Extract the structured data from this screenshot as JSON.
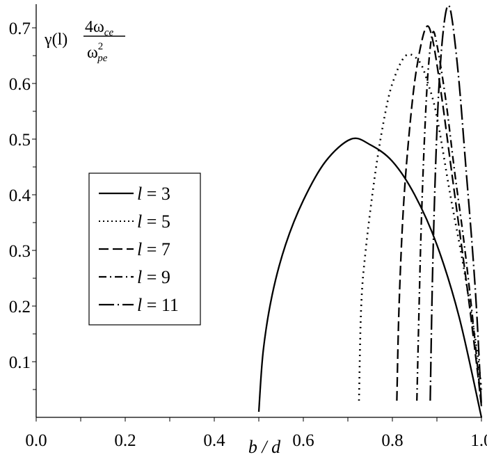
{
  "chart_data": {
    "type": "line",
    "xlabel": "b / d",
    "ylabel": {
      "prefix": "γ(l)",
      "numerator": "4ω",
      "numerator_sub": "ce",
      "denominator": "ω",
      "denominator_sup": "2",
      "denominator_sub": "pe"
    },
    "xlim": [
      0,
      1.0
    ],
    "ylim": [
      0,
      0.75
    ],
    "xticks": [
      "0.0",
      "0.2",
      "0.4",
      "0.6",
      "0.8",
      "1.0"
    ],
    "xtick_values": [
      0,
      0.2,
      0.4,
      0.6,
      0.8,
      1.0
    ],
    "yticks": [
      "0.1",
      "0.2",
      "0.3",
      "0.4",
      "0.5",
      "0.6",
      "0.7"
    ],
    "ytick_values": [
      0.1,
      0.2,
      0.3,
      0.4,
      0.5,
      0.6,
      0.7
    ],
    "grid": false,
    "legend_placement": "center-left",
    "color": "#000000",
    "series": [
      {
        "name": "l = 3",
        "var": "l",
        "val": "3",
        "style": "solid",
        "x": [
          0.5,
          0.51,
          0.53,
          0.56,
          0.6,
          0.65,
          0.707,
          0.75,
          0.8,
          0.85,
          0.9,
          0.95,
          1.0
        ],
        "y": [
          0.01,
          0.12,
          0.22,
          0.31,
          0.39,
          0.46,
          0.5,
          0.49,
          0.46,
          0.4,
          0.31,
          0.18,
          0.0
        ]
      },
      {
        "name": "l = 5",
        "var": "l",
        "val": "5",
        "style": "dotted",
        "x": [
          0.725,
          0.73,
          0.74,
          0.76,
          0.78,
          0.8,
          0.83,
          0.86,
          0.88,
          0.9,
          0.93,
          0.96,
          0.99,
          1.0
        ],
        "y": [
          0.03,
          0.2,
          0.3,
          0.43,
          0.53,
          0.6,
          0.65,
          0.64,
          0.6,
          0.54,
          0.4,
          0.27,
          0.12,
          0.05
        ]
      },
      {
        "name": "l = 7",
        "var": "l",
        "val": "7",
        "style": "dashed",
        "x": [
          0.81,
          0.815,
          0.825,
          0.84,
          0.855,
          0.875,
          0.89,
          0.91,
          0.93,
          0.95,
          0.97,
          0.99,
          1.0
        ],
        "y": [
          0.03,
          0.2,
          0.38,
          0.53,
          0.63,
          0.7,
          0.68,
          0.58,
          0.46,
          0.34,
          0.22,
          0.09,
          0.02
        ]
      },
      {
        "name": "l = 9",
        "var": "l",
        "val": "9",
        "style": "dash-dot",
        "x": [
          0.855,
          0.86,
          0.865,
          0.872,
          0.88,
          0.89,
          0.9,
          0.92,
          0.94,
          0.96,
          0.98,
          1.0
        ],
        "y": [
          0.03,
          0.2,
          0.35,
          0.5,
          0.62,
          0.69,
          0.67,
          0.57,
          0.44,
          0.32,
          0.18,
          0.02
        ]
      },
      {
        "name": "l = 11",
        "var": "l",
        "val": "11",
        "style": "long-dash-dot",
        "x": [
          0.885,
          0.89,
          0.897,
          0.905,
          0.915,
          0.925,
          0.935,
          0.95,
          0.965,
          0.98,
          0.99,
          1.0
        ],
        "y": [
          0.03,
          0.25,
          0.45,
          0.6,
          0.7,
          0.74,
          0.71,
          0.6,
          0.45,
          0.3,
          0.18,
          0.02
        ]
      }
    ]
  }
}
